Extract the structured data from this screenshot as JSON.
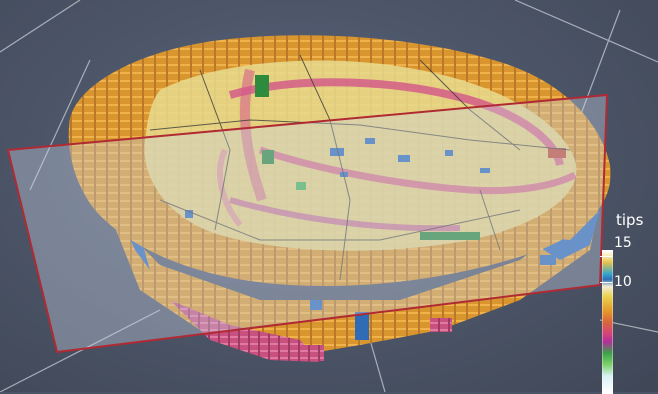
{
  "viewport": {
    "background": "#4b5466"
  },
  "legend": {
    "title": "tips",
    "ticks": [
      {
        "label": "15",
        "value": 15
      },
      {
        "label": "10",
        "value": 10
      }
    ],
    "range": [
      0,
      15
    ]
  },
  "scene": {
    "slice_plane_color": "#b02a34",
    "bounding_box_color": "#c8ccd6",
    "model_colors": [
      "#e0a33a",
      "#d7922e",
      "#c97a2c",
      "#d3558a",
      "#2f6bb6",
      "#e6d36a",
      "#2e8a3c"
    ]
  }
}
